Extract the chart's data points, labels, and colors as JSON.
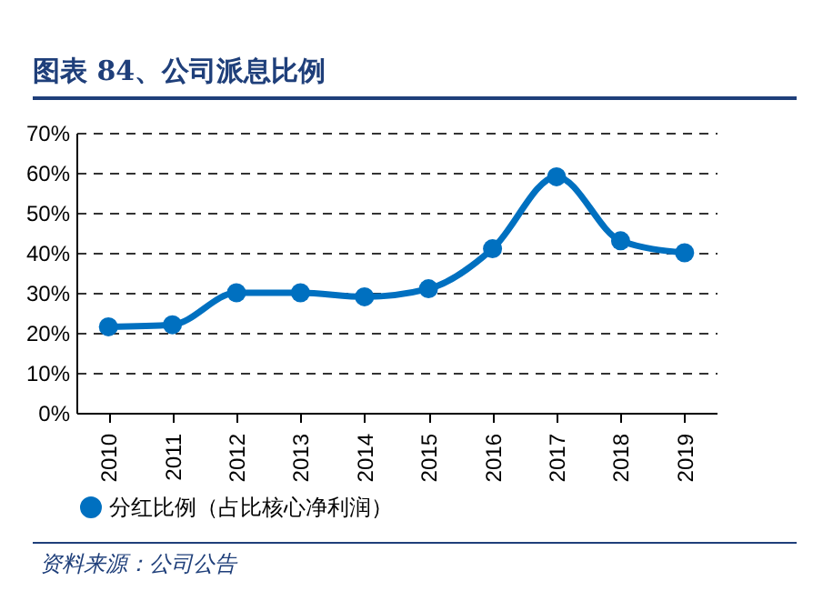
{
  "chart_data": {
    "type": "line",
    "title": "图表 84、公司派息比例",
    "categories": [
      "2010",
      "2011",
      "2012",
      "2013",
      "2014",
      "2015",
      "2016",
      "2017",
      "2018",
      "2019"
    ],
    "series": [
      {
        "name": "分红比例（占比核心净利润）",
        "color": "#0070c0",
        "values": [
          21.5,
          22,
          30,
          30,
          29,
          31,
          41,
          59,
          43,
          40
        ]
      }
    ],
    "ylim": [
      0,
      70
    ],
    "yticks": [
      {
        "value": 0,
        "label": "0%"
      },
      {
        "value": 10,
        "label": "10%"
      },
      {
        "value": 20,
        "label": "20%"
      },
      {
        "value": 30,
        "label": "30%"
      },
      {
        "value": 40,
        "label": "40%"
      },
      {
        "value": 50,
        "label": "50%"
      },
      {
        "value": 60,
        "label": "60%"
      },
      {
        "value": 70,
        "label": "70%"
      }
    ],
    "grid": "y",
    "legend": "bottom",
    "marker": "circle",
    "line_style": "solid",
    "annotations": [
      "资料来源：公司公告"
    ]
  }
}
